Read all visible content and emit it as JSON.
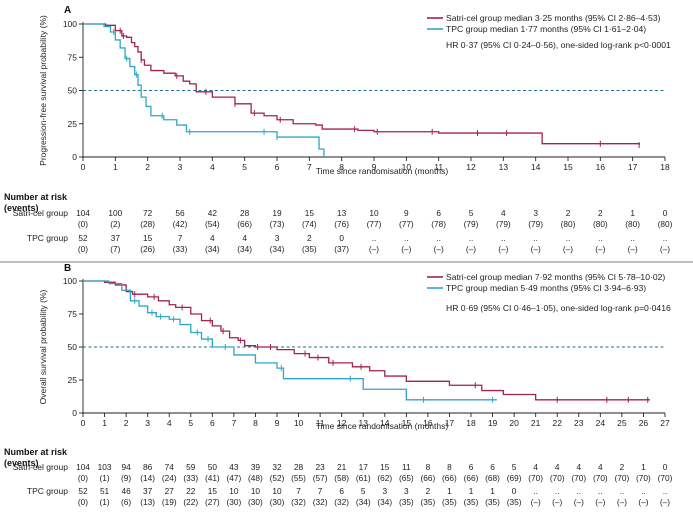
{
  "chart_data": [
    {
      "type": "line",
      "panel": "A",
      "ylabel": "Progression-free survival probability (%)",
      "xlabel": "Time since randomisation (months)",
      "xlim": [
        0,
        18
      ],
      "ylim": [
        0,
        100
      ],
      "xticks": [
        "0",
        "1",
        "2",
        "3",
        "4",
        "5",
        "6",
        "7",
        "8",
        "9",
        "10",
        "11",
        "12",
        "13",
        "14",
        "15",
        "16",
        "17",
        "18"
      ],
      "yticks": [
        "0",
        "25",
        "50",
        "75",
        "100"
      ],
      "reference_line": 50,
      "series": [
        {
          "name": "Satri-cel group",
          "color": "#a3224f",
          "legend": "Satri-cel group median 3·25 months (95% CI 2·86–4·53)",
          "x": [
            0,
            0.7,
            1.0,
            1.2,
            1.35,
            1.5,
            1.6,
            1.7,
            1.8,
            1.9,
            2.1,
            2.5,
            2.75,
            2.85,
            3.1,
            3.3,
            3.5,
            4.0,
            4.5,
            4.7,
            5.2,
            5.6,
            6.0,
            6.5,
            7.2,
            7.4,
            8.5,
            9.0,
            11.0,
            14.2,
            17.2
          ],
          "y": [
            100,
            99,
            95,
            91,
            90,
            86,
            83,
            79,
            73,
            69,
            65,
            63,
            63,
            61,
            57,
            55,
            49,
            45,
            45,
            40,
            33,
            31,
            28,
            25,
            24,
            21,
            20,
            19,
            18,
            10,
            9
          ],
          "censor_x": [
            1.15,
            1.25,
            1.8,
            2.9,
            3.8,
            4.7,
            5.3,
            6.1,
            8.4,
            9.1,
            10.8,
            12.2,
            13.1,
            16.0,
            17.2
          ]
        },
        {
          "name": "TPC group",
          "color": "#2ea6c9",
          "legend": "TPC group median 1·77 months (95% CI 1·61–2·04)",
          "x": [
            0,
            0.65,
            0.85,
            1.0,
            1.15,
            1.3,
            1.45,
            1.6,
            1.7,
            1.8,
            1.95,
            2.1,
            2.5,
            2.9,
            3.2,
            6.0,
            7.3,
            7.45
          ],
          "y": [
            100,
            98,
            94,
            88,
            82,
            74,
            68,
            62,
            54,
            45,
            38,
            31,
            28,
            24,
            19,
            15,
            6,
            0
          ],
          "censor_x": [
            0.95,
            1.35,
            1.65,
            2.45,
            3.3,
            5.6,
            6.0
          ]
        }
      ],
      "hr_text": "HR 0·37 (95% CI 0·24–0·56), one-sided log-rank p<0·0001",
      "risk_table": {
        "header": "Number at risk",
        "subheader": "(events)",
        "rows": [
          {
            "label": "Satri-cel group",
            "n": [
              "104",
              "100",
              "72",
              "56",
              "42",
              "28",
              "19",
              "15",
              "13",
              "10",
              "9",
              "6",
              "5",
              "4",
              "3",
              "2",
              "2",
              "1",
              "0"
            ],
            "events": [
              "(0)",
              "(2)",
              "(28)",
              "(42)",
              "(54)",
              "(66)",
              "(73)",
              "(74)",
              "(76)",
              "(77)",
              "(77)",
              "(78)",
              "(79)",
              "(79)",
              "(79)",
              "(80)",
              "(80)",
              "(80)",
              "(80)"
            ]
          },
          {
            "label": "TPC group",
            "n": [
              "52",
              "37",
              "15",
              "7",
              "4",
              "4",
              "3",
              "2",
              "0",
              "..",
              "..",
              "..",
              "..",
              "..",
              "..",
              "..",
              "..",
              "..",
              ".."
            ],
            "events": [
              "(0)",
              "(7)",
              "(26)",
              "(33)",
              "(34)",
              "(34)",
              "(34)",
              "(35)",
              "(37)",
              "(–)",
              "(–)",
              "(–)",
              "(–)",
              "(–)",
              "(–)",
              "(–)",
              "(–)",
              "(–)",
              "(–)"
            ]
          }
        ]
      }
    },
    {
      "type": "line",
      "panel": "B",
      "ylabel": "Overall survival probability (%)",
      "xlabel": "Time since randomisation (months)",
      "xlim": [
        0,
        27
      ],
      "ylim": [
        0,
        100
      ],
      "xticks": [
        "0",
        "1",
        "2",
        "3",
        "4",
        "5",
        "6",
        "7",
        "8",
        "9",
        "10",
        "11",
        "12",
        "13",
        "14",
        "15",
        "16",
        "17",
        "18",
        "19",
        "20",
        "21",
        "22",
        "23",
        "24",
        "25",
        "26",
        "27"
      ],
      "yticks": [
        "0",
        "25",
        "50",
        "75",
        "100"
      ],
      "reference_line": 50,
      "series": [
        {
          "name": "Satri-cel group",
          "color": "#a3224f",
          "legend": "Satri-cel group median 7·92 months (95% CI 5·78–10·02)",
          "x": [
            0,
            1.0,
            1.5,
            2.0,
            2.3,
            3.0,
            3.5,
            4.0,
            4.3,
            5.0,
            5.5,
            6.0,
            6.4,
            6.8,
            7.2,
            7.5,
            8.0,
            9.0,
            9.8,
            10.5,
            11.4,
            12.5,
            13.3,
            14.0,
            15.0,
            17.0,
            18.5,
            19.5,
            21.0,
            26.3
          ],
          "y": [
            100,
            99,
            97,
            92,
            90,
            88,
            85,
            82,
            80,
            75,
            70,
            66,
            62,
            57,
            55,
            51,
            50,
            48,
            45,
            42,
            38,
            35,
            32,
            28,
            24,
            21,
            17,
            14,
            10,
            10
          ],
          "censor_x": [
            2.4,
            3.3,
            4.6,
            5.9,
            6.5,
            7.3,
            8.1,
            8.7,
            10.3,
            10.9,
            11.6,
            12.9,
            18.2,
            22.0,
            24.3,
            25.3,
            26.2
          ]
        },
        {
          "name": "TPC group",
          "color": "#2ea6c9",
          "legend": "TPC group median 5·49 months (95% CI 3·94–6·93)",
          "x": [
            0,
            1.2,
            1.8,
            2.2,
            2.6,
            3.0,
            3.4,
            4.0,
            4.5,
            5.0,
            5.5,
            6.0,
            7.0,
            8.0,
            9.0,
            9.3,
            12.5,
            13.0,
            15.0,
            19.2
          ],
          "y": [
            100,
            98,
            93,
            85,
            81,
            76,
            73,
            71,
            67,
            61,
            56,
            50,
            44,
            38,
            34,
            26,
            26,
            18,
            10,
            10
          ],
          "censor_x": [
            2.4,
            3.2,
            3.6,
            4.2,
            5.3,
            5.8,
            6.6,
            9.2,
            12.4,
            15.8,
            19.0
          ]
        }
      ],
      "hr_text": "HR 0·69 (95% CI 0·46–1·05), one-sided log-rank p=0·0416",
      "risk_table": {
        "header": "Number at risk",
        "subheader": "(events)",
        "rows": [
          {
            "label": "Satri-cel group",
            "n": [
              "104",
              "103",
              "94",
              "86",
              "74",
              "59",
              "50",
              "43",
              "39",
              "32",
              "28",
              "23",
              "21",
              "17",
              "15",
              "11",
              "8",
              "8",
              "6",
              "6",
              "5",
              "4",
              "4",
              "4",
              "4",
              "2",
              "1",
              "0"
            ],
            "events": [
              "(0)",
              "(1)",
              "(9)",
              "(14)",
              "(24)",
              "(33)",
              "(41)",
              "(47)",
              "(48)",
              "(52)",
              "(55)",
              "(57)",
              "(58)",
              "(61)",
              "(62)",
              "(65)",
              "(66)",
              "(66)",
              "(66)",
              "(68)",
              "(69)",
              "(70)",
              "(70)",
              "(70)",
              "(70)",
              "(70)",
              "(70)",
              "(70)"
            ]
          },
          {
            "label": "TPC group",
            "n": [
              "52",
              "51",
              "46",
              "37",
              "27",
              "22",
              "15",
              "10",
              "10",
              "10",
              "7",
              "7",
              "6",
              "5",
              "3",
              "3",
              "2",
              "1",
              "1",
              "1",
              "0",
              "..",
              "..",
              "..",
              "..",
              "..",
              "..",
              ".."
            ],
            "events": [
              "(0)",
              "(1)",
              "(6)",
              "(13)",
              "(19)",
              "(22)",
              "(27)",
              "(30)",
              "(30)",
              "(30)",
              "(32)",
              "(32)",
              "(32)",
              "(34)",
              "(34)",
              "(35)",
              "(35)",
              "(35)",
              "(35)",
              "(35)",
              "(35)",
              "(–)",
              "(–)",
              "(–)",
              "(–)",
              "(–)",
              "(–)",
              "(–)"
            ]
          }
        ]
      }
    }
  ]
}
